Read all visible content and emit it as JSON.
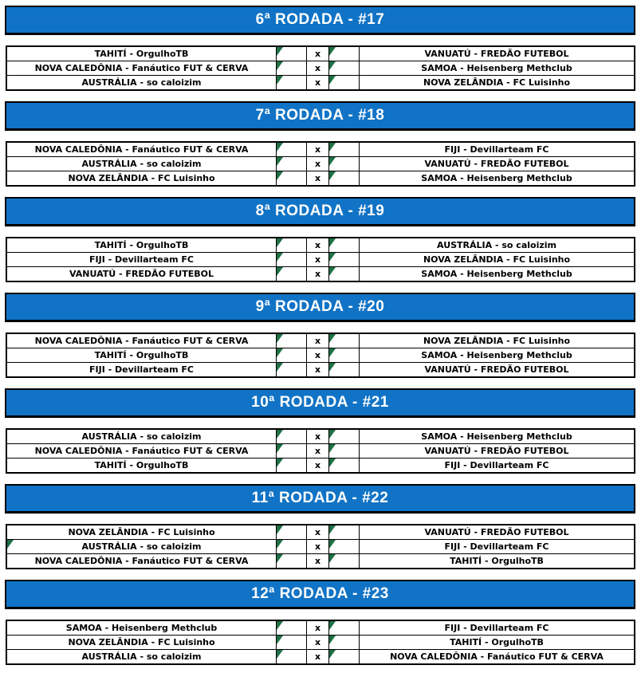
{
  "separator": "x",
  "colors": {
    "header_bg": "#1173C5",
    "header_text": "#ffffff",
    "warning_triangle": "#1E7145",
    "grid_border": "#000000"
  },
  "rounds": [
    {
      "title": "6ª RODADA - #17",
      "matches": [
        {
          "home": "TAHITÍ - OrgulhoTB",
          "away": "VANUATÚ - FREDÃO FUTEBOL"
        },
        {
          "home": "NOVA CALEDÔNIA - Fanáutico FUT & CERVA",
          "away": "SAMOA - Heisenberg Methclub"
        },
        {
          "home": "AUSTRÁLIA - so caloizim",
          "away": "NOVA ZELÂNDIA - FC Luisinho"
        }
      ]
    },
    {
      "title": "7ª RODADA - #18",
      "matches": [
        {
          "home": "NOVA CALEDÔNIA - Fanáutico FUT & CERVA",
          "away": "FIJI - Devillarteam FC"
        },
        {
          "home": "AUSTRÁLIA - so caloizim",
          "away": "VANUATÚ - FREDÃO FUTEBOL"
        },
        {
          "home": "NOVA ZELÂNDIA - FC Luisinho",
          "away": "SAMOA - Heisenberg Methclub"
        }
      ]
    },
    {
      "title": "8ª RODADA - #19",
      "matches": [
        {
          "home": "TAHITÍ - OrgulhoTB",
          "away": "AUSTRÁLIA - so caloizim"
        },
        {
          "home": "FIJI - Devillarteam FC",
          "away": "NOVA ZELÂNDIA - FC Luisinho"
        },
        {
          "home": "VANUATÚ - FREDÃO FUTEBOL",
          "away": "SAMOA - Heisenberg Methclub"
        }
      ]
    },
    {
      "title": "9ª RODADA - #20",
      "matches": [
        {
          "home": "NOVA CALEDÔNIA - Fanáutico FUT & CERVA",
          "away": "NOVA ZELÂNDIA - FC Luisinho"
        },
        {
          "home": "TAHITÍ - OrgulhoTB",
          "away": "SAMOA - Heisenberg Methclub"
        },
        {
          "home": "FIJI - Devillarteam FC",
          "away": "VANUATÚ - FREDÃO FUTEBOL"
        }
      ]
    },
    {
      "title": "10ª RODADA - #21",
      "matches": [
        {
          "home": "AUSTRÁLIA - so caloizim",
          "away": "SAMOA - Heisenberg Methclub"
        },
        {
          "home": "NOVA CALEDÔNIA - Fanáutico FUT & CERVA",
          "away": "VANUATÚ - FREDÃO FUTEBOL"
        },
        {
          "home": "TAHITÍ - OrgulhoTB",
          "away": "FIJI - Devillarteam FC"
        }
      ]
    },
    {
      "title": "11ª RODADA - #22",
      "matches": [
        {
          "home": "NOVA ZELÂNDIA - FC Luisinho",
          "away": "VANUATÚ - FREDÃO FUTEBOL"
        },
        {
          "home": "AUSTRÁLIA - so caloizim",
          "away": "FIJI - Devillarteam FC"
        },
        {
          "home": "NOVA CALEDÔNIA - Fanáutico FUT & CERVA",
          "away": "TAHITÍ - OrgulhoTB"
        }
      ]
    },
    {
      "title": "12ª RODADA - #23",
      "matches": [
        {
          "home": "SAMOA - Heisenberg Methclub",
          "away": "FIJI - Devillarteam FC"
        },
        {
          "home": "NOVA ZELÂNDIA - FC Luisinho",
          "away": "TAHITÍ - OrgulhoTB"
        },
        {
          "home": "AUSTRÁLIA - so caloizim",
          "away": "NOVA CALEDÔNIA - Fanáutico FUT & CERVA"
        }
      ]
    }
  ]
}
